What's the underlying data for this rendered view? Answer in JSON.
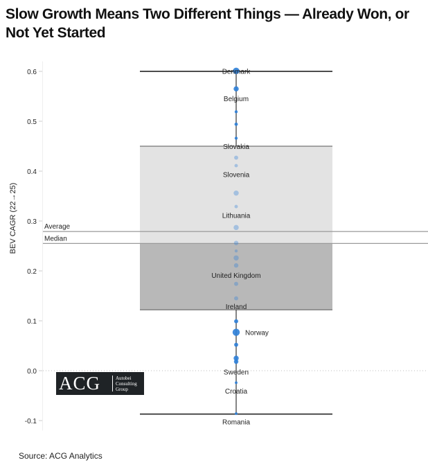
{
  "title": "Slow Growth Means Two Different Things — Already Won, or Not Yet Started",
  "source": "Source: ACG Analytics",
  "logo": {
    "mark": "ACG",
    "name_lines": [
      "Autobei",
      "Consulting",
      "Group"
    ],
    "background": "#1f2326"
  },
  "chart_data": {
    "type": "box",
    "title": "Slow Growth Means Two Different Things — Already Won, or Not Yet Started",
    "ylabel": "BEV CAGR (22→25)",
    "xlabel": "",
    "ylim": [
      -0.1,
      0.6
    ],
    "yticks": [
      {
        "value": -0.1,
        "label": "-0.1"
      },
      {
        "value": 0.0,
        "label": "0.0"
      },
      {
        "value": 0.1,
        "label": "0.1"
      },
      {
        "value": 0.2,
        "label": "0.2"
      },
      {
        "value": 0.3,
        "label": "0.3"
      },
      {
        "value": 0.4,
        "label": "0.4"
      },
      {
        "value": 0.5,
        "label": "0.5"
      },
      {
        "value": 0.6,
        "label": "0.6"
      }
    ],
    "grid": false,
    "box": {
      "max": 0.6,
      "q3": 0.45,
      "median": 0.255,
      "q1": 0.122,
      "min": -0.087,
      "upper_fill": "#e3e3e3",
      "lower_fill": "#b8b8b8",
      "whisker_color": "#333333"
    },
    "reference_lines": [
      {
        "name": "Average",
        "value": 0.279,
        "color": "#9a9a9a"
      },
      {
        "name": "Median",
        "value": 0.255,
        "color": "#9a9a9a"
      }
    ],
    "zero_line": {
      "value": 0.0,
      "style": "dotted",
      "color": "#bbbbbb"
    },
    "point_color": "#2e7fd8",
    "points": [
      {
        "label": "Denmark",
        "value": 0.601,
        "size": 7
      },
      {
        "label": "",
        "value": 0.565,
        "size": 5
      },
      {
        "label": "Belgium",
        "value": 0.546,
        "size": 0
      },
      {
        "label": "",
        "value": 0.519,
        "size": 2
      },
      {
        "label": "",
        "value": 0.494,
        "size": 2.5
      },
      {
        "label": "",
        "value": 0.466,
        "size": 2
      },
      {
        "label": "Slovakia",
        "value": 0.45,
        "size": 0
      },
      {
        "label": "",
        "value": 0.427,
        "size": 3.5
      },
      {
        "label": "",
        "value": 0.411,
        "size": 2.5
      },
      {
        "label": "Slovenia",
        "value": 0.394,
        "size": 0
      },
      {
        "label": "",
        "value": 0.356,
        "size": 5
      },
      {
        "label": "",
        "value": 0.329,
        "size": 2.5
      },
      {
        "label": "Lithuania",
        "value": 0.312,
        "size": 0
      },
      {
        "label": "",
        "value": 0.287,
        "size": 5
      },
      {
        "label": "",
        "value": 0.256,
        "size": 4
      },
      {
        "label": "",
        "value": 0.24,
        "size": 2
      },
      {
        "label": "",
        "value": 0.226,
        "size": 5
      },
      {
        "label": "",
        "value": 0.211,
        "size": 4
      },
      {
        "label": "United Kingdom",
        "value": 0.192,
        "size": 0
      },
      {
        "label": "",
        "value": 0.174,
        "size": 3.5
      },
      {
        "label": "",
        "value": 0.145,
        "size": 3.5
      },
      {
        "label": "Ireland",
        "value": 0.129,
        "size": 0
      },
      {
        "label": "",
        "value": 0.099,
        "size": 3.5
      },
      {
        "label": "Norway",
        "value": 0.077,
        "size": 8
      },
      {
        "label": "",
        "value": 0.052,
        "size": 3.5
      },
      {
        "label": "",
        "value": 0.025,
        "size": 5
      },
      {
        "label": "",
        "value": 0.018,
        "size": 4
      },
      {
        "label": "Sweden",
        "value": -0.002,
        "size": 0
      },
      {
        "label": "",
        "value": -0.024,
        "size": 1.5
      },
      {
        "label": "Croatia",
        "value": -0.04,
        "size": 0
      },
      {
        "label": "",
        "value": -0.086,
        "size": 1.5
      },
      {
        "label": "Romania",
        "value": -0.102,
        "size": 0
      }
    ]
  }
}
